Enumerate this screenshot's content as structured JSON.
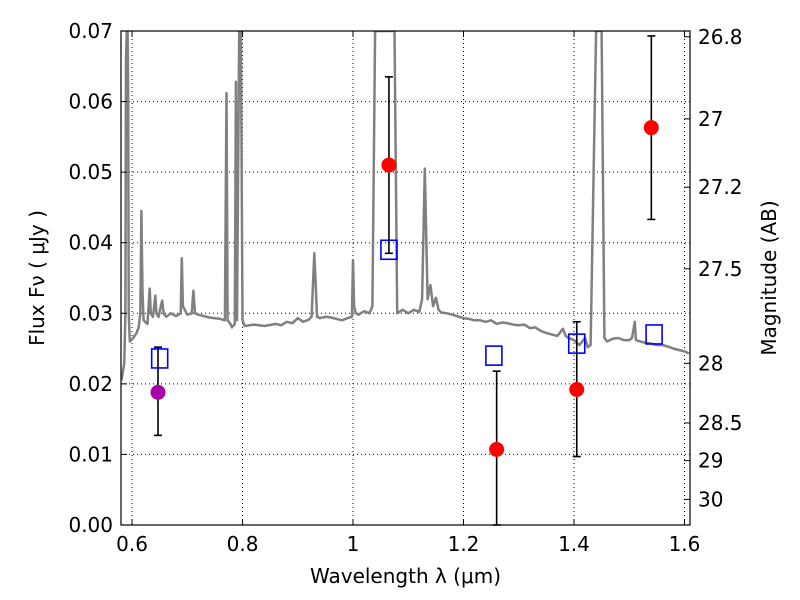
{
  "chart_data": {
    "type": "scatter",
    "xlabel": "Wavelength  λ (μm)",
    "ylabel": "Flux  Fν  ( μJy )",
    "ylabel_right": "Magnitude (AB)",
    "xlim": [
      0.58,
      1.61
    ],
    "ylim": [
      0.0,
      0.07
    ],
    "grid": true,
    "x_ticks": [
      0.6,
      0.8,
      1.0,
      1.2,
      1.4,
      1.6
    ],
    "x_tick_labels": [
      "0.6",
      "0.8",
      "1",
      "1.2",
      "1.4",
      "1.6"
    ],
    "y_ticks": [
      0.0,
      0.01,
      0.02,
      0.03,
      0.04,
      0.05,
      0.06,
      0.07
    ],
    "y_tick_labels": [
      "0.00",
      "0.01",
      "0.02",
      "0.03",
      "0.04",
      "0.05",
      "0.06",
      "0.07"
    ],
    "right_ticks": [
      {
        "label": "26.8",
        "mag": 26.8
      },
      {
        "label": "27",
        "mag": 27.0
      },
      {
        "label": "27.2",
        "mag": 27.2
      },
      {
        "label": "27.5",
        "mag": 27.5
      },
      {
        "label": "28",
        "mag": 28.0
      },
      {
        "label": "28.5",
        "mag": 28.5
      },
      {
        "label": "29",
        "mag": 29.0
      },
      {
        "label": "30",
        "mag": 30.0
      }
    ],
    "colors": {
      "spectrum": "#808080",
      "observed": "#ff0000",
      "observed_alt": "#aa00aa",
      "model_box": "#0000ff",
      "errorbar": "#000000",
      "grid": "#000000"
    },
    "series": [
      {
        "kind": "line",
        "points": [
          [
            0.581,
            0.0205
          ],
          [
            0.586,
            0.023
          ],
          [
            0.588,
            0.03
          ],
          [
            0.589,
            0.066
          ],
          [
            0.5905,
            0.07
          ],
          [
            0.592,
            0.07
          ],
          [
            0.593,
            0.06
          ],
          [
            0.594,
            0.03
          ],
          [
            0.596,
            0.026
          ],
          [
            0.602,
            0.0265
          ],
          [
            0.608,
            0.0272
          ],
          [
            0.612,
            0.028
          ],
          [
            0.615,
            0.03
          ],
          [
            0.617,
            0.0445
          ],
          [
            0.619,
            0.033
          ],
          [
            0.621,
            0.029
          ],
          [
            0.628,
            0.0285
          ],
          [
            0.632,
            0.0335
          ],
          [
            0.634,
            0.03
          ],
          [
            0.638,
            0.0295
          ],
          [
            0.642,
            0.0325
          ],
          [
            0.644,
            0.03
          ],
          [
            0.648,
            0.0295
          ],
          [
            0.652,
            0.031
          ],
          [
            0.6545,
            0.0318
          ],
          [
            0.657,
            0.03
          ],
          [
            0.662,
            0.0295
          ],
          [
            0.67,
            0.03
          ],
          [
            0.68,
            0.0296
          ],
          [
            0.688,
            0.03
          ],
          [
            0.69,
            0.0378
          ],
          [
            0.692,
            0.031
          ],
          [
            0.7,
            0.0298
          ],
          [
            0.708,
            0.03
          ],
          [
            0.711,
            0.0332
          ],
          [
            0.714,
            0.03
          ],
          [
            0.72,
            0.0298
          ],
          [
            0.73,
            0.0296
          ],
          [
            0.74,
            0.0294
          ],
          [
            0.75,
            0.0293
          ],
          [
            0.76,
            0.0292
          ],
          [
            0.768,
            0.029
          ],
          [
            0.771,
            0.0612
          ],
          [
            0.773,
            0.029
          ],
          [
            0.778,
            0.0285
          ],
          [
            0.781,
            0.028
          ],
          [
            0.786,
            0.0285
          ],
          [
            0.788,
            0.0628
          ],
          [
            0.79,
            0.029
          ],
          [
            0.794,
            0.07
          ],
          [
            0.797,
            0.07
          ],
          [
            0.8,
            0.029
          ],
          [
            0.804,
            0.0282
          ],
          [
            0.82,
            0.0284
          ],
          [
            0.84,
            0.0282
          ],
          [
            0.86,
            0.0285
          ],
          [
            0.87,
            0.0283
          ],
          [
            0.88,
            0.0288
          ],
          [
            0.89,
            0.0286
          ],
          [
            0.9,
            0.0293
          ],
          [
            0.91,
            0.0288
          ],
          [
            0.92,
            0.0291
          ],
          [
            0.925,
            0.0295
          ],
          [
            0.93,
            0.0385
          ],
          [
            0.935,
            0.0295
          ],
          [
            0.94,
            0.0293
          ],
          [
            0.95,
            0.0295
          ],
          [
            0.96,
            0.0294
          ],
          [
            0.98,
            0.029
          ],
          [
            0.99,
            0.0293
          ],
          [
            0.998,
            0.0295
          ],
          [
            1.0,
            0.0375
          ],
          [
            1.002,
            0.031
          ],
          [
            1.005,
            0.03
          ],
          [
            1.01,
            0.0298
          ],
          [
            1.02,
            0.0303
          ],
          [
            1.03,
            0.03
          ],
          [
            1.035,
            0.031
          ],
          [
            1.04,
            0.07
          ],
          [
            1.055,
            0.07
          ],
          [
            1.06,
            0.07
          ],
          [
            1.075,
            0.07
          ],
          [
            1.08,
            0.03
          ],
          [
            1.09,
            0.0305
          ],
          [
            1.1,
            0.03
          ],
          [
            1.11,
            0.0305
          ],
          [
            1.12,
            0.0302
          ],
          [
            1.125,
            0.032
          ],
          [
            1.13,
            0.0505
          ],
          [
            1.135,
            0.032
          ],
          [
            1.14,
            0.034
          ],
          [
            1.145,
            0.031
          ],
          [
            1.15,
            0.0322
          ],
          [
            1.155,
            0.0305
          ],
          [
            1.16,
            0.0301
          ],
          [
            1.17,
            0.03
          ],
          [
            1.18,
            0.0298
          ],
          [
            1.2,
            0.0293
          ],
          [
            1.21,
            0.0292
          ],
          [
            1.22,
            0.029
          ],
          [
            1.23,
            0.029
          ],
          [
            1.24,
            0.0288
          ],
          [
            1.25,
            0.029
          ],
          [
            1.26,
            0.0285
          ],
          [
            1.27,
            0.0287
          ],
          [
            1.28,
            0.0286
          ],
          [
            1.29,
            0.0284
          ],
          [
            1.3,
            0.0283
          ],
          [
            1.31,
            0.0284
          ],
          [
            1.32,
            0.0279
          ],
          [
            1.33,
            0.028
          ],
          [
            1.34,
            0.0275
          ],
          [
            1.35,
            0.0272
          ],
          [
            1.36,
            0.027
          ],
          [
            1.37,
            0.0268
          ],
          [
            1.38,
            0.0278
          ],
          [
            1.385,
            0.0268
          ],
          [
            1.39,
            0.0265
          ],
          [
            1.4,
            0.0262
          ],
          [
            1.405,
            0.0258
          ],
          [
            1.41,
            0.0255
          ],
          [
            1.42,
            0.0265
          ],
          [
            1.425,
            0.0252
          ],
          [
            1.43,
            0.0255
          ],
          [
            1.44,
            0.07
          ],
          [
            1.45,
            0.07
          ],
          [
            1.455,
            0.0265
          ],
          [
            1.46,
            0.026
          ],
          [
            1.47,
            0.0264
          ],
          [
            1.48,
            0.0265
          ],
          [
            1.49,
            0.0262
          ],
          [
            1.5,
            0.0262
          ],
          [
            1.505,
            0.0265
          ],
          [
            1.51,
            0.0288
          ],
          [
            1.512,
            0.0262
          ],
          [
            1.52,
            0.026
          ],
          [
            1.53,
            0.0258
          ],
          [
            1.54,
            0.0257
          ],
          [
            1.55,
            0.0255
          ],
          [
            1.56,
            0.0255
          ],
          [
            1.57,
            0.0253
          ],
          [
            1.58,
            0.025
          ],
          [
            1.59,
            0.0248
          ],
          [
            1.6,
            0.0246
          ],
          [
            1.608,
            0.0243
          ]
        ]
      },
      {
        "kind": "observed",
        "points": [
          {
            "x": 0.647,
            "y": 0.0188,
            "err_low": 0.0127,
            "err_high": 0.0252,
            "color": "#aa00aa"
          },
          {
            "x": 1.065,
            "y": 0.051,
            "err_low": 0.0385,
            "err_high": 0.0635,
            "color": "#ff0000"
          },
          {
            "x": 1.26,
            "y": 0.0107,
            "err_low": 0.0,
            "err_high": 0.0218,
            "color": "#ff0000"
          },
          {
            "x": 1.405,
            "y": 0.0192,
            "err_low": 0.0097,
            "err_high": 0.0288,
            "color": "#ff0000"
          },
          {
            "x": 1.54,
            "y": 0.0563,
            "err_low": 0.0433,
            "err_high": 0.0693,
            "color": "#ff0000"
          }
        ]
      },
      {
        "kind": "model",
        "points": [
          {
            "x": 0.65,
            "y": 0.0236
          },
          {
            "x": 1.065,
            "y": 0.039
          },
          {
            "x": 1.255,
            "y": 0.024
          },
          {
            "x": 1.405,
            "y": 0.0257
          },
          {
            "x": 1.545,
            "y": 0.027
          }
        ]
      }
    ]
  }
}
